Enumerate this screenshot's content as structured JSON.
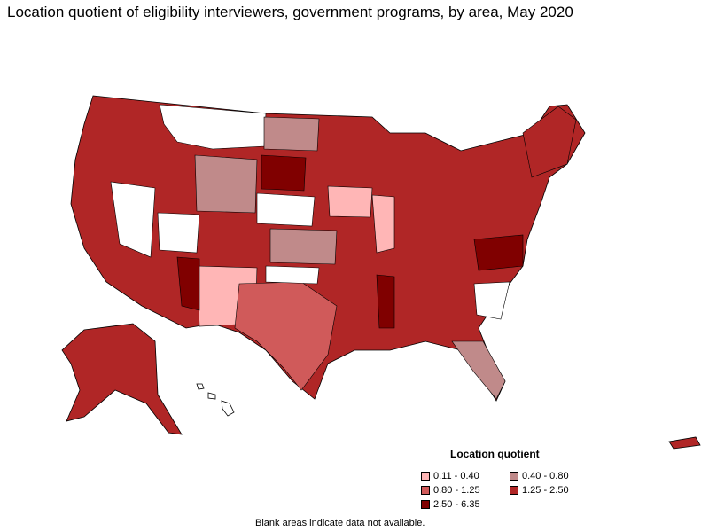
{
  "title": "Location quotient of eligibility interviewers, government programs, by area, May 2020",
  "legend": {
    "title": "Location quotient",
    "items": [
      {
        "label": "0.11 - 0.40",
        "color": "#ffb6b6"
      },
      {
        "label": "0.40 - 0.80",
        "color": "#c08a8a"
      },
      {
        "label": "0.80 - 1.25",
        "color": "#d05a5a"
      },
      {
        "label": "1.25 - 2.50",
        "color": "#b02626"
      },
      {
        "label": "2.50 - 6.35",
        "color": "#800000"
      }
    ]
  },
  "footnote": "Blank areas indicate data not available."
}
